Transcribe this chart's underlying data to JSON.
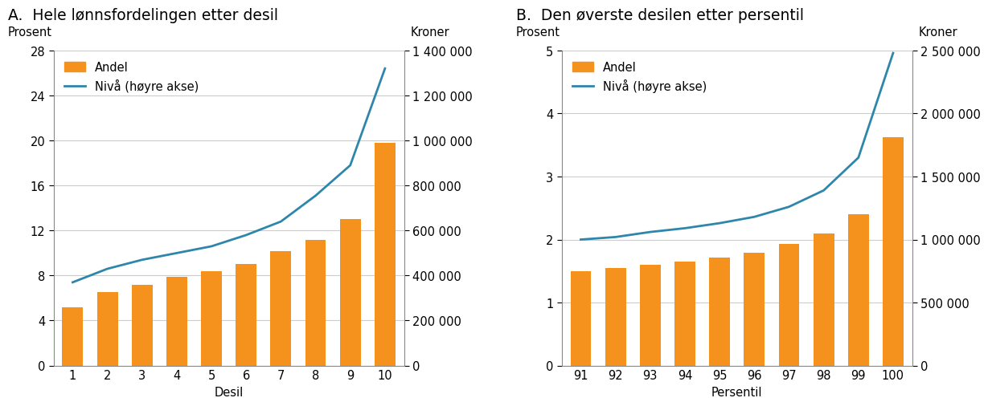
{
  "panel_A": {
    "title": "A.  Hele lønnsfordelingen etter desil",
    "xlabel": "Desil",
    "ylabel_left": "Prosent",
    "ylabel_right": "Kroner",
    "categories": [
      1,
      2,
      3,
      4,
      5,
      6,
      7,
      8,
      9,
      10
    ],
    "bar_values": [
      5.2,
      6.5,
      7.2,
      7.9,
      8.4,
      9.0,
      10.2,
      11.2,
      13.0,
      19.8
    ],
    "line_values": [
      370000,
      430000,
      470000,
      500000,
      530000,
      580000,
      640000,
      755000,
      890000,
      1320000
    ],
    "bar_color": "#F5921E",
    "line_color": "#2E86AB",
    "ylim_left": [
      0,
      28
    ],
    "ylim_right": [
      0,
      1400000
    ],
    "yticks_left": [
      0,
      4,
      8,
      12,
      16,
      20,
      24,
      28
    ],
    "yticks_right": [
      0,
      200000,
      400000,
      600000,
      800000,
      1000000,
      1200000,
      1400000
    ]
  },
  "panel_B": {
    "title": "B.  Den øverste desilen etter persentil",
    "xlabel": "Persentil",
    "ylabel_left": "Prosent",
    "ylabel_right": "Kroner",
    "categories": [
      91,
      92,
      93,
      94,
      95,
      96,
      97,
      98,
      99,
      100
    ],
    "bar_values": [
      1.5,
      1.55,
      1.6,
      1.65,
      1.72,
      1.79,
      1.93,
      2.1,
      2.4,
      3.62
    ],
    "line_values": [
      1000000,
      1020000,
      1060000,
      1090000,
      1130000,
      1180000,
      1260000,
      1390000,
      1650000,
      2480000
    ],
    "bar_color": "#F5921E",
    "line_color": "#2E86AB",
    "ylim_left": [
      0,
      5
    ],
    "ylim_right": [
      0,
      2500000
    ],
    "yticks_left": [
      0,
      1,
      2,
      3,
      4,
      5
    ],
    "yticks_right": [
      0,
      500000,
      1000000,
      1500000,
      2000000,
      2500000
    ]
  },
  "legend_label_bar": "Andel",
  "legend_label_line": "Nivå (høyre akse)",
  "background_color": "#FFFFFF",
  "title_fontsize": 13.5,
  "label_fontsize": 10.5,
  "tick_fontsize": 10.5,
  "axis_label_fontsize": 10.5
}
